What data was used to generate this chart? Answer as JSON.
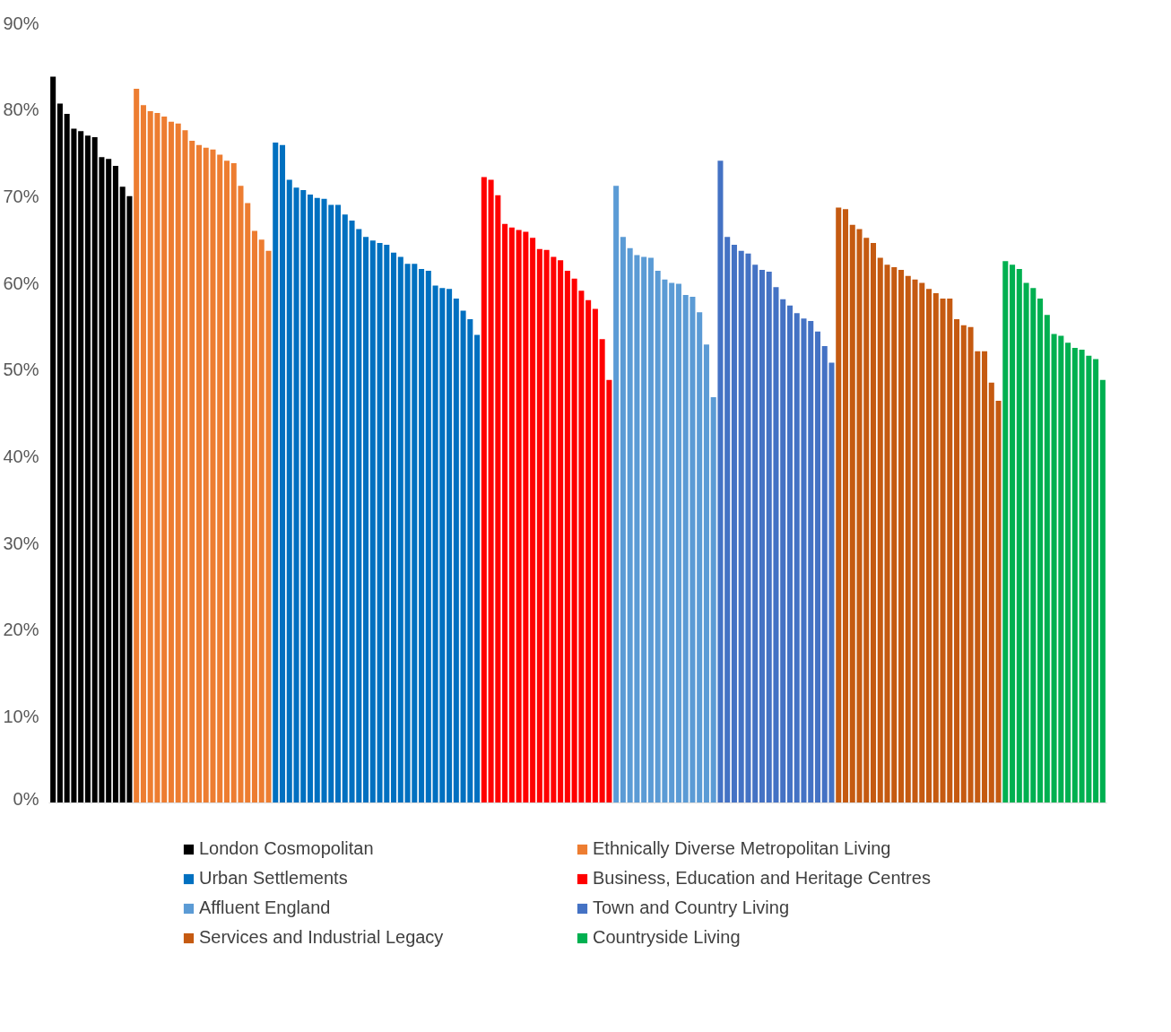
{
  "chart_data": {
    "type": "bar",
    "categories": [
      null,
      null,
      null,
      null,
      null,
      null,
      null,
      null,
      null,
      null,
      null,
      null,
      null,
      null,
      null,
      null,
      null,
      null,
      null,
      null,
      null,
      null,
      null,
      null,
      null,
      null,
      null,
      null,
      null,
      null,
      null,
      null,
      null,
      null,
      null,
      null,
      null,
      null,
      null,
      null,
      null,
      null,
      null,
      null,
      null,
      null,
      null,
      null,
      null,
      null,
      null,
      null,
      null,
      null,
      null,
      null,
      null,
      null,
      null,
      null,
      null,
      null,
      null,
      null,
      null,
      null,
      null,
      null,
      null,
      null,
      null,
      null,
      null,
      null,
      null,
      null,
      null,
      null,
      null,
      null,
      null,
      null,
      null,
      null,
      null,
      null,
      null,
      null,
      null,
      null,
      null,
      null,
      null,
      null,
      null,
      null,
      null,
      null,
      null,
      null,
      null,
      null,
      null,
      null,
      null,
      null,
      null,
      null,
      null,
      null,
      null,
      null,
      null,
      null,
      null,
      null,
      null,
      null,
      null,
      null,
      null,
      null,
      null,
      null,
      null,
      null,
      null,
      null,
      null,
      null,
      null,
      null,
      null,
      null,
      null,
      null,
      null,
      null,
      null,
      null,
      null,
      null,
      null,
      null,
      null,
      null,
      null,
      null,
      null,
      null,
      null,
      null
    ],
    "series": [
      {
        "name": "London Cosmopolitan",
        "color": "#000000",
        "values": [
          83.8,
          80.7,
          79.5,
          77.8,
          77.5,
          77.0,
          76.8,
          74.5,
          74.3,
          73.5,
          71.1,
          70.0,
          null,
          null,
          null,
          null,
          null,
          null,
          null,
          null,
          null,
          null,
          null,
          null,
          null,
          null,
          null,
          null,
          null,
          null,
          null,
          null,
          null,
          null,
          null,
          null,
          null,
          null,
          null,
          null,
          null,
          null,
          null,
          null,
          null,
          null,
          null,
          null,
          null,
          null,
          null,
          null,
          null,
          null,
          null,
          null,
          null,
          null,
          null,
          null,
          null,
          null,
          null,
          null,
          null,
          null,
          null,
          null,
          null,
          null,
          null,
          null,
          null,
          null,
          null,
          null,
          null,
          null,
          null,
          null,
          null,
          null,
          null,
          null,
          null,
          null,
          null,
          null,
          null,
          null,
          null,
          null,
          null,
          null,
          null,
          null,
          null,
          null,
          null,
          null,
          null,
          null,
          null,
          null,
          null,
          null,
          null,
          null,
          null,
          null,
          null,
          null,
          null,
          null,
          null,
          null,
          null,
          null,
          null,
          null,
          null,
          null,
          null,
          null,
          null,
          null,
          null,
          null,
          null,
          null,
          null,
          null,
          null,
          null,
          null,
          null,
          null,
          null,
          null,
          null,
          null,
          null,
          null,
          null,
          null,
          null,
          null,
          null,
          null,
          null,
          null,
          null
        ]
      },
      {
        "name": "Ethnically Diverse Metropolitan Living",
        "color": "#ed7d31",
        "values": [
          null,
          null,
          null,
          null,
          null,
          null,
          null,
          null,
          null,
          null,
          null,
          null,
          82.4,
          80.5,
          79.8,
          79.6,
          79.2,
          78.6,
          78.4,
          77.6,
          76.4,
          75.9,
          75.6,
          75.4,
          74.8,
          74.1,
          73.8,
          71.2,
          69.2,
          66.0,
          65.0,
          63.7,
          null,
          null,
          null,
          null,
          null,
          null,
          null,
          null,
          null,
          null,
          null,
          null,
          null,
          null,
          null,
          null,
          null,
          null,
          null,
          null,
          null,
          null,
          null,
          null,
          null,
          null,
          null,
          null,
          null,
          null,
          null,
          null,
          null,
          null,
          null,
          null,
          null,
          null,
          null,
          null,
          null,
          null,
          null,
          null,
          null,
          null,
          null,
          null,
          null,
          null,
          null,
          null,
          null,
          null,
          null,
          null,
          null,
          null,
          null,
          null,
          null,
          null,
          null,
          null,
          null,
          null,
          null,
          null,
          null,
          null,
          null,
          null,
          null,
          null,
          null,
          null,
          null,
          null,
          null,
          null,
          null,
          null,
          null,
          null,
          null,
          null,
          null,
          null,
          null,
          null,
          null,
          null,
          null,
          null,
          null,
          null,
          null,
          null,
          null,
          null,
          null,
          null,
          null,
          null,
          null,
          null,
          null,
          null,
          null,
          null,
          null,
          null,
          null,
          null,
          null,
          null,
          null,
          null,
          null,
          null
        ]
      },
      {
        "name": "Urban Settlements",
        "color": "#0070c0",
        "values": [
          null,
          null,
          null,
          null,
          null,
          null,
          null,
          null,
          null,
          null,
          null,
          null,
          null,
          null,
          null,
          null,
          null,
          null,
          null,
          null,
          null,
          null,
          null,
          null,
          null,
          null,
          null,
          null,
          null,
          null,
          null,
          null,
          76.2,
          75.9,
          71.9,
          71.0,
          70.7,
          70.2,
          69.8,
          69.7,
          69.0,
          69.0,
          67.9,
          67.2,
          66.2,
          65.3,
          64.9,
          64.6,
          64.4,
          63.5,
          63.0,
          62.2,
          62.2,
          61.6,
          61.4,
          59.7,
          59.4,
          59.3,
          58.2,
          56.8,
          55.8,
          54.0,
          null,
          null,
          null,
          null,
          null,
          null,
          null,
          null,
          null,
          null,
          null,
          null,
          null,
          null,
          null,
          null,
          null,
          null,
          null,
          null,
          null,
          null,
          null,
          null,
          null,
          null,
          null,
          null,
          null,
          null,
          null,
          null,
          null,
          null,
          null,
          null,
          null,
          null,
          null,
          null,
          null,
          null,
          null,
          null,
          null,
          null,
          null,
          null,
          null,
          null,
          null,
          null,
          null,
          null,
          null,
          null,
          null,
          null,
          null,
          null,
          null,
          null,
          null,
          null,
          null,
          null,
          null,
          null,
          null,
          null,
          null,
          null,
          null,
          null,
          null,
          null,
          null,
          null,
          null,
          null,
          null,
          null,
          null,
          null,
          null,
          null,
          null,
          null,
          null,
          null
        ]
      },
      {
        "name": "Business, Education and Heritage Centres",
        "color": "#ff0000",
        "values": [
          null,
          null,
          null,
          null,
          null,
          null,
          null,
          null,
          null,
          null,
          null,
          null,
          null,
          null,
          null,
          null,
          null,
          null,
          null,
          null,
          null,
          null,
          null,
          null,
          null,
          null,
          null,
          null,
          null,
          null,
          null,
          null,
          null,
          null,
          null,
          null,
          null,
          null,
          null,
          null,
          null,
          null,
          null,
          null,
          null,
          null,
          null,
          null,
          null,
          null,
          null,
          null,
          null,
          null,
          null,
          null,
          null,
          null,
          null,
          null,
          null,
          null,
          72.2,
          71.9,
          70.1,
          66.8,
          66.4,
          66.1,
          65.9,
          65.2,
          63.9,
          63.8,
          63.0,
          62.6,
          61.4,
          60.5,
          59.1,
          58.0,
          57.0,
          53.5,
          48.8,
          null,
          null,
          null,
          null,
          null,
          null,
          null,
          null,
          null,
          null,
          null,
          null,
          null,
          null,
          null,
          null,
          null,
          null,
          null,
          null,
          null,
          null,
          null,
          null,
          null,
          null,
          null,
          null,
          null,
          null,
          null,
          null,
          null,
          null,
          null,
          null,
          null,
          null,
          null,
          null,
          null,
          null,
          null,
          null,
          null,
          null,
          null,
          null,
          null,
          null,
          null,
          null,
          null,
          null,
          null,
          null,
          null,
          null,
          null,
          null,
          null,
          null,
          null,
          null,
          null,
          null,
          null,
          null,
          null,
          null,
          null
        ]
      },
      {
        "name": "Affluent England",
        "color": "#5b9bd5",
        "values": [
          null,
          null,
          null,
          null,
          null,
          null,
          null,
          null,
          null,
          null,
          null,
          null,
          null,
          null,
          null,
          null,
          null,
          null,
          null,
          null,
          null,
          null,
          null,
          null,
          null,
          null,
          null,
          null,
          null,
          null,
          null,
          null,
          null,
          null,
          null,
          null,
          null,
          null,
          null,
          null,
          null,
          null,
          null,
          null,
          null,
          null,
          null,
          null,
          null,
          null,
          null,
          null,
          null,
          null,
          null,
          null,
          null,
          null,
          null,
          null,
          null,
          null,
          null,
          null,
          null,
          null,
          null,
          null,
          null,
          null,
          null,
          null,
          null,
          null,
          null,
          null,
          null,
          null,
          null,
          null,
          null,
          71.2,
          65.3,
          64.0,
          63.2,
          63.0,
          62.9,
          61.4,
          60.4,
          60.0,
          59.9,
          58.6,
          58.4,
          56.6,
          52.9,
          46.8,
          null,
          null,
          null,
          null,
          null,
          null,
          null,
          null,
          null,
          null,
          null,
          null,
          null,
          null,
          null,
          null,
          null,
          null,
          null,
          null,
          null,
          null,
          null,
          null,
          null,
          null,
          null,
          null,
          null,
          null,
          null,
          null,
          null,
          null,
          null,
          null,
          null,
          null,
          null,
          null,
          null,
          null,
          null,
          null,
          null,
          null,
          null,
          null,
          null,
          null,
          null,
          null,
          null,
          null,
          null,
          null
        ]
      },
      {
        "name": "Town and Country Living",
        "color": "#4472c4",
        "values": [
          null,
          null,
          null,
          null,
          null,
          null,
          null,
          null,
          null,
          null,
          null,
          null,
          null,
          null,
          null,
          null,
          null,
          null,
          null,
          null,
          null,
          null,
          null,
          null,
          null,
          null,
          null,
          null,
          null,
          null,
          null,
          null,
          null,
          null,
          null,
          null,
          null,
          null,
          null,
          null,
          null,
          null,
          null,
          null,
          null,
          null,
          null,
          null,
          null,
          null,
          null,
          null,
          null,
          null,
          null,
          null,
          null,
          null,
          null,
          null,
          null,
          null,
          null,
          null,
          null,
          null,
          null,
          null,
          null,
          null,
          null,
          null,
          null,
          null,
          null,
          null,
          null,
          null,
          null,
          null,
          null,
          null,
          null,
          null,
          null,
          null,
          null,
          null,
          null,
          null,
          null,
          null,
          null,
          null,
          null,
          null,
          74.1,
          65.3,
          64.4,
          63.7,
          63.4,
          62.1,
          61.5,
          61.3,
          59.5,
          58.1,
          57.4,
          56.5,
          55.9,
          55.6,
          54.4,
          52.7,
          50.8,
          null,
          null,
          null,
          null,
          null,
          null,
          null,
          null,
          null,
          null,
          null,
          null,
          null,
          null,
          null,
          null,
          null,
          null,
          null,
          null,
          null,
          null,
          null,
          null,
          null,
          null,
          null,
          null,
          null,
          null,
          null,
          null,
          null,
          null,
          null,
          null,
          null,
          null,
          null
        ]
      },
      {
        "name": "Services and Industrial Legacy",
        "color": "#c55a11",
        "values": [
          null,
          null,
          null,
          null,
          null,
          null,
          null,
          null,
          null,
          null,
          null,
          null,
          null,
          null,
          null,
          null,
          null,
          null,
          null,
          null,
          null,
          null,
          null,
          null,
          null,
          null,
          null,
          null,
          null,
          null,
          null,
          null,
          null,
          null,
          null,
          null,
          null,
          null,
          null,
          null,
          null,
          null,
          null,
          null,
          null,
          null,
          null,
          null,
          null,
          null,
          null,
          null,
          null,
          null,
          null,
          null,
          null,
          null,
          null,
          null,
          null,
          null,
          null,
          null,
          null,
          null,
          null,
          null,
          null,
          null,
          null,
          null,
          null,
          null,
          null,
          null,
          null,
          null,
          null,
          null,
          null,
          null,
          null,
          null,
          null,
          null,
          null,
          null,
          null,
          null,
          null,
          null,
          null,
          null,
          null,
          null,
          null,
          null,
          null,
          null,
          null,
          null,
          null,
          null,
          null,
          null,
          null,
          null,
          null,
          null,
          null,
          null,
          null,
          68.7,
          68.5,
          66.7,
          66.2,
          65.2,
          64.6,
          62.9,
          62.1,
          61.8,
          61.5,
          60.8,
          60.4,
          60.0,
          59.3,
          58.8,
          58.2,
          58.2,
          55.8,
          55.1,
          54.9,
          52.1,
          52.1,
          48.5,
          46.4,
          null,
          null,
          null,
          null,
          null,
          null,
          null,
          null,
          null,
          null,
          null,
          null,
          null,
          null,
          null
        ]
      },
      {
        "name": "Countryside Living",
        "color": "#00b050",
        "values": [
          null,
          null,
          null,
          null,
          null,
          null,
          null,
          null,
          null,
          null,
          null,
          null,
          null,
          null,
          null,
          null,
          null,
          null,
          null,
          null,
          null,
          null,
          null,
          null,
          null,
          null,
          null,
          null,
          null,
          null,
          null,
          null,
          null,
          null,
          null,
          null,
          null,
          null,
          null,
          null,
          null,
          null,
          null,
          null,
          null,
          null,
          null,
          null,
          null,
          null,
          null,
          null,
          null,
          null,
          null,
          null,
          null,
          null,
          null,
          null,
          null,
          null,
          null,
          null,
          null,
          null,
          null,
          null,
          null,
          null,
          null,
          null,
          null,
          null,
          null,
          null,
          null,
          null,
          null,
          null,
          null,
          null,
          null,
          null,
          null,
          null,
          null,
          null,
          null,
          null,
          null,
          null,
          null,
          null,
          null,
          null,
          null,
          null,
          null,
          null,
          null,
          null,
          null,
          null,
          null,
          null,
          null,
          null,
          null,
          null,
          null,
          null,
          null,
          null,
          null,
          null,
          null,
          null,
          null,
          null,
          null,
          null,
          null,
          null,
          null,
          null,
          null,
          null,
          null,
          null,
          null,
          null,
          null,
          null,
          null,
          null,
          null,
          62.5,
          62.1,
          61.6,
          60.0,
          59.4,
          58.2,
          56.3,
          54.1,
          53.9,
          53.1,
          52.5,
          52.3,
          51.6,
          51.2,
          48.8
        ]
      }
    ],
    "ylim": [
      0,
      90
    ],
    "yticks": [
      {
        "value": 0,
        "label": "0%"
      },
      {
        "value": 10,
        "label": "10%"
      },
      {
        "value": 20,
        "label": "20%"
      },
      {
        "value": 30,
        "label": "30%"
      },
      {
        "value": 40,
        "label": "40%"
      },
      {
        "value": 50,
        "label": "50%"
      },
      {
        "value": 60,
        "label": "60%"
      },
      {
        "value": 70,
        "label": "70%"
      },
      {
        "value": 80,
        "label": "80%"
      },
      {
        "value": 90,
        "label": "90%"
      }
    ],
    "legend": "bottom"
  }
}
